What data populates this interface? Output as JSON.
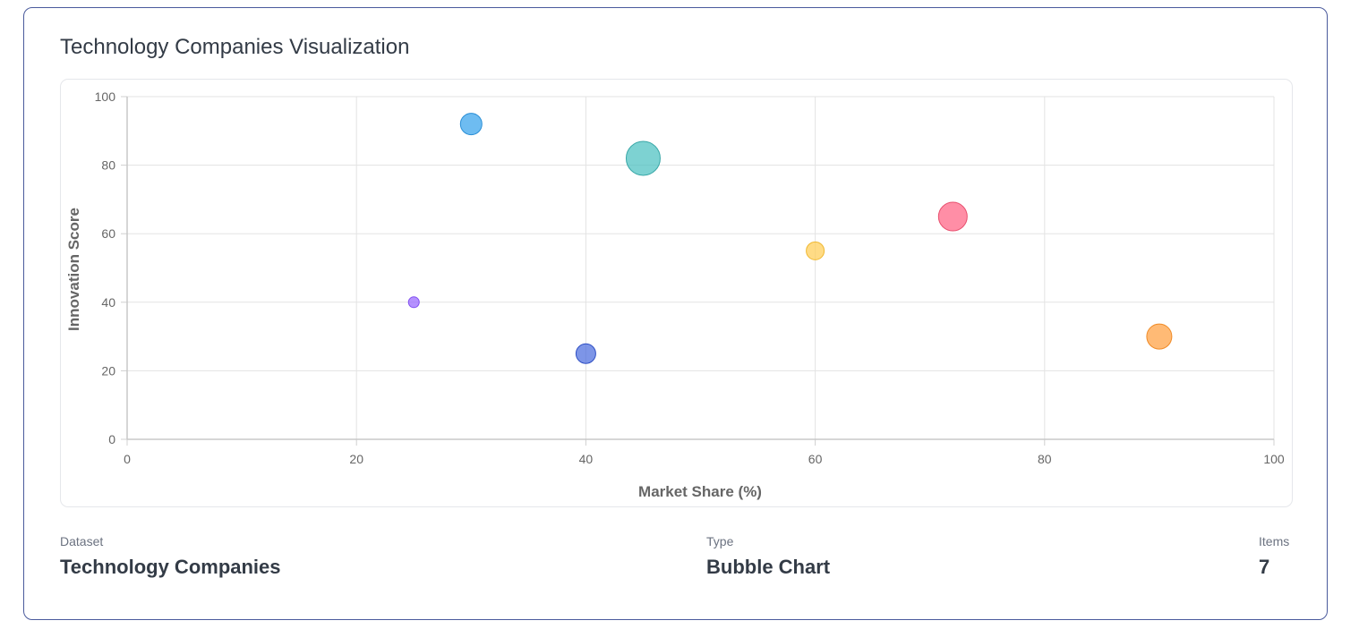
{
  "card": {
    "title": "Technology Companies Visualization"
  },
  "info": {
    "dataset_label": "Dataset",
    "dataset_value": "Technology Companies",
    "type_label": "Type",
    "type_value": "Bubble Chart",
    "items_label": "Items",
    "items_value": "7"
  },
  "chart_data": {
    "type": "scatter",
    "variant": "bubble",
    "xlabel": "Market Share (%)",
    "ylabel": "Innovation Score",
    "xlim": [
      0,
      100
    ],
    "ylim": [
      0,
      100
    ],
    "xticks": [
      0,
      20,
      40,
      60,
      80,
      100
    ],
    "yticks": [
      0,
      20,
      40,
      60,
      80,
      100
    ],
    "grid": true,
    "points": [
      {
        "x": 30,
        "y": 92,
        "r": 12,
        "fill": "#36a2eb",
        "border": "#2b8fd6"
      },
      {
        "x": 45,
        "y": 82,
        "r": 19,
        "fill": "#4bc0c0",
        "border": "#3aa8a8"
      },
      {
        "x": 72,
        "y": 65,
        "r": 16,
        "fill": "#ff6384",
        "border": "#e8506f"
      },
      {
        "x": 60,
        "y": 55,
        "r": 10,
        "fill": "#ffcd56",
        "border": "#f0b830"
      },
      {
        "x": 25,
        "y": 40,
        "r": 6,
        "fill": "#9966ff",
        "border": "#7f4ef0"
      },
      {
        "x": 40,
        "y": 25,
        "r": 11,
        "fill": "#4b6cde",
        "border": "#2f4fc4"
      },
      {
        "x": 90,
        "y": 30,
        "r": 14,
        "fill": "#ff9f40",
        "border": "#f08a25"
      }
    ]
  }
}
